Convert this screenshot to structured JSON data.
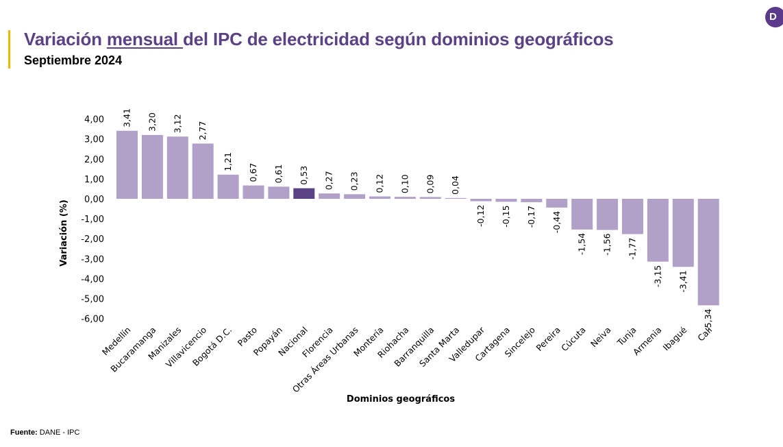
{
  "header": {
    "title_part1": "Variación ",
    "title_underlined": "mensual ",
    "title_part2": "del IPC de electricidad según dominios geográficos",
    "subtitle": "Septiembre 2024",
    "logo_letter": "D"
  },
  "footer": {
    "label": "Fuente:",
    "text": " DANE - IPC"
  },
  "colors": {
    "accent": "#F2B705",
    "title": "#5B4284",
    "bar": "#B1A1C9",
    "bar_highlight": "#5B4284",
    "logo": "#5B3A8C"
  },
  "chart_data": {
    "type": "bar",
    "title": "Variación mensual del IPC de electricidad según dominios geográficos",
    "subtitle": "Septiembre 2024",
    "xlabel": "Dominios geográficos",
    "ylabel": "Variación (%)",
    "ylim": [
      -6,
      4
    ],
    "yticks": [
      4,
      3,
      2,
      1,
      0,
      -1,
      -2,
      -3,
      -4,
      -5,
      -6
    ],
    "ytick_labels": [
      "4,00",
      "3,00",
      "2,00",
      "1,00",
      "0,00",
      "-1,00",
      "-2,00",
      "-3,00",
      "-4,00",
      "-5,00",
      "-6,00"
    ],
    "grid": false,
    "legend": "none",
    "highlight_category": "Nacional",
    "categories": [
      "Medellín",
      "Bucaramanga",
      "Manizales",
      "Villavicencio",
      "Bogotá D.C.",
      "Pasto",
      "Popayán",
      "Nacional",
      "Florencia",
      "Otras Áreas Urbanas",
      "Montería",
      "Riohacha",
      "Barranquilla",
      "Santa Marta",
      "Valledupar",
      "Cartagena",
      "Sincelejo",
      "Pereira",
      "Cúcuta",
      "Neiva",
      "Tunja",
      "Armenia",
      "Ibagué",
      "Cali"
    ],
    "values": [
      3.41,
      3.2,
      3.12,
      2.77,
      1.21,
      0.67,
      0.61,
      0.53,
      0.27,
      0.23,
      0.12,
      0.1,
      0.09,
      0.04,
      -0.12,
      -0.15,
      -0.17,
      -0.44,
      -1.54,
      -1.56,
      -1.77,
      -3.15,
      -3.41,
      -5.34
    ],
    "value_labels": [
      "3,41",
      "3,20",
      "3,12",
      "2,77",
      "1,21",
      "0,67",
      "0,61",
      "0,53",
      "0,27",
      "0,23",
      "0,12",
      "0,10",
      "0,09",
      "0,04",
      "-0,12",
      "-0,15",
      "-0,17",
      "-0,44",
      "-1,54",
      "-1,56",
      "-1,77",
      "-3,15",
      "-3,41",
      "-5,34"
    ]
  }
}
